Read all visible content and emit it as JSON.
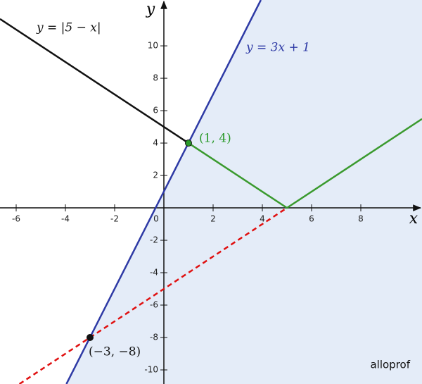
{
  "chart_data": {
    "type": "line",
    "xlim": [
      -6.657,
      10.486
    ],
    "ylim": [
      -10.87,
      12.83
    ],
    "xticks": [
      -6,
      -4,
      -2,
      0,
      2,
      4,
      6,
      8
    ],
    "yticks": [
      -10,
      -8,
      -6,
      -4,
      -2,
      2,
      4,
      6,
      8,
      10
    ],
    "x_label": "x",
    "y_label": "y",
    "shaded_region": {
      "color": "#e4ecf8"
    },
    "series": [
      {
        "name": "y = |5 − x|",
        "color": "#111111",
        "x": [
          -6.657,
          1
        ],
        "values": [
          11.66,
          4
        ]
      },
      {
        "name": "y = 3x + 1",
        "color": "#2e3aa5",
        "x": [
          -3.96,
          3.94
        ],
        "values": [
          -10.87,
          12.83
        ]
      },
      {
        "color": "#3a9a2e",
        "x": [
          1,
          5,
          10.486
        ],
        "values": [
          4,
          0,
          5.49
        ]
      },
      {
        "color": "#e01010",
        "dashed": true,
        "x": [
          -5.87,
          5
        ],
        "values": [
          -10.87,
          0
        ]
      }
    ],
    "points": [
      {
        "x": 1,
        "y": 4,
        "label": "(1, 4)",
        "color": "#2a9a2a"
      },
      {
        "x": -3,
        "y": -8,
        "label": "(−3, −8)",
        "color": "#111111"
      }
    ],
    "watermark": "alloprof"
  }
}
